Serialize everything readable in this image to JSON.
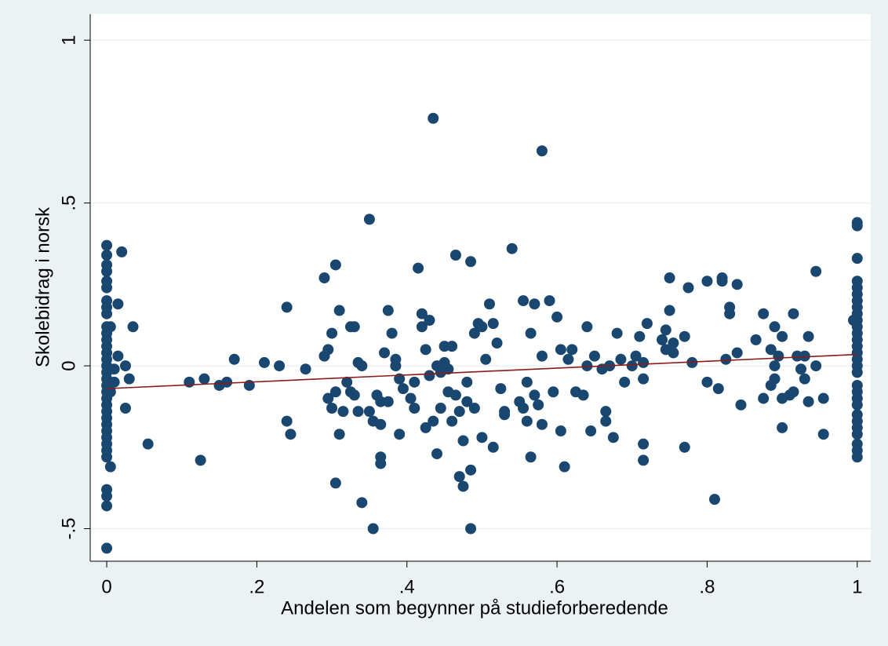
{
  "chart_data": {
    "type": "scatter",
    "x_label": "Andelen som begynner på studieforberedende",
    "y_label": "Skolebidrag i norsk",
    "xlim": [
      -0.022,
      1.018
    ],
    "ylim": [
      -0.6,
      1.08
    ],
    "xticks": [
      0,
      {
        "value": 0.2,
        "label": ".2"
      },
      {
        "value": 0.4,
        "label": ".4"
      },
      {
        "value": 0.6,
        "label": ".6"
      },
      {
        "value": 0.8,
        "label": ".8"
      },
      1
    ],
    "yticks": [
      {
        "value": -0.5,
        "label": "-.5"
      },
      0,
      {
        "value": 0.5,
        "label": ".5"
      },
      1
    ],
    "grid": true,
    "color": "#1a476f",
    "x": [
      0,
      0,
      0,
      0,
      0,
      0,
      0,
      0,
      0,
      0,
      0,
      0,
      0,
      0,
      0,
      0,
      0,
      0,
      0,
      0,
      0,
      0,
      0,
      0,
      0,
      0,
      0,
      0,
      0,
      0,
      0,
      0,
      0,
      0,
      0.005,
      0.005,
      0.01,
      0.015,
      0.015,
      0.02,
      0.025,
      0.03,
      0.025,
      0.035,
      0.005,
      0.055,
      0.01,
      0.11,
      0.125,
      0.13,
      0.15,
      0.16,
      0.17,
      0.19,
      0.21,
      0.23,
      0.24,
      0.24,
      0.245,
      0.265,
      0.29,
      0.29,
      0.295,
      0.295,
      0.3,
      0.3,
      0.305,
      0.305,
      0.305,
      0.31,
      0.31,
      0.315,
      0.32,
      0.325,
      0.325,
      0.33,
      0.33,
      0.335,
      0.335,
      0.34,
      0.34,
      0.35,
      0.35,
      0.355,
      0.355,
      0.36,
      0.365,
      0.365,
      0.365,
      0.365,
      0.37,
      0.375,
      0.375,
      0.38,
      0.385,
      0.385,
      0.39,
      0.39,
      0.395,
      0.405,
      0.41,
      0.41,
      0.415,
      0.42,
      0.42,
      0.425,
      0.425,
      0.43,
      0.43,
      0.435,
      0.435,
      0.44,
      0.44,
      0.445,
      0.445,
      0.45,
      0.45,
      0.455,
      0.455,
      0.46,
      0.46,
      0.465,
      0.465,
      0.47,
      0.47,
      0.475,
      0.475,
      0.48,
      0.48,
      0.485,
      0.485,
      0.485,
      0.49,
      0.49,
      0.495,
      0.5,
      0.5,
      0.505,
      0.51,
      0.515,
      0.515,
      0.52,
      0.525,
      0.53,
      0.53,
      0.54,
      0.55,
      0.555,
      0.555,
      0.56,
      0.56,
      0.565,
      0.565,
      0.57,
      0.57,
      0.575,
      0.58,
      0.58,
      0.58,
      0.59,
      0.595,
      0.6,
      0.605,
      0.605,
      0.61,
      0.615,
      0.62,
      0.625,
      0.635,
      0.64,
      0.64,
      0.645,
      0.65,
      0.66,
      0.665,
      0.665,
      0.67,
      0.675,
      0.68,
      0.685,
      0.69,
      0.7,
      0.705,
      0.71,
      0.715,
      0.715,
      0.715,
      0.72,
      0.715,
      0.74,
      0.745,
      0.745,
      0.75,
      0.75,
      0.755,
      0.755,
      0.77,
      0.77,
      0.775,
      0.78,
      0.8,
      0.8,
      0.81,
      0.815,
      0.82,
      0.82,
      0.825,
      0.83,
      0.83,
      0.84,
      0.84,
      0.845,
      0.865,
      0.875,
      0.875,
      0.885,
      0.885,
      0.89,
      0.89,
      0.89,
      0.895,
      0.9,
      0.9,
      0.9,
      0.91,
      0.915,
      0.915,
      0.92,
      0.925,
      0.93,
      0.93,
      0.935,
      0.935,
      0.945,
      0.945,
      0.955,
      0.955,
      0.995,
      1,
      1,
      1,
      1,
      1,
      1,
      1,
      1,
      1,
      1,
      1,
      1,
      1,
      1,
      1,
      1,
      1,
      1,
      1,
      1,
      1,
      1,
      1,
      1,
      1,
      1,
      1,
      1,
      1
    ],
    "values": [
      0.37,
      0.34,
      0.31,
      0.29,
      0.26,
      0.24,
      0.2,
      0.18,
      0.16,
      0.12,
      0.1,
      0.08,
      0.06,
      0.04,
      0.02,
      0.0,
      -0.02,
      -0.04,
      -0.06,
      -0.08,
      -0.1,
      -0.12,
      -0.14,
      -0.16,
      -0.18,
      -0.2,
      -0.22,
      -0.24,
      -0.26,
      -0.28,
      -0.38,
      -0.4,
      -0.43,
      -0.56,
      0.12,
      -0.08,
      -0.05,
      0.03,
      0.19,
      0.35,
      0.0,
      -0.04,
      -0.13,
      0.12,
      -0.31,
      -0.24,
      -0.01,
      -0.05,
      -0.29,
      -0.04,
      -0.06,
      -0.05,
      0.02,
      -0.06,
      0.01,
      0.0,
      -0.17,
      0.18,
      -0.21,
      -0.01,
      0.27,
      0.03,
      0.05,
      -0.1,
      -0.13,
      0.1,
      -0.08,
      0.31,
      -0.36,
      -0.21,
      0.17,
      -0.14,
      -0.05,
      -0.08,
      0.12,
      0.12,
      -0.09,
      -0.14,
      0.01,
      0.0,
      -0.42,
      0.45,
      -0.14,
      -0.17,
      -0.5,
      -0.09,
      -0.11,
      -0.18,
      -0.28,
      -0.3,
      0.04,
      0.17,
      -0.11,
      0.1,
      0.0,
      0.02,
      -0.21,
      -0.04,
      -0.07,
      -0.1,
      -0.13,
      -0.05,
      0.3,
      0.16,
      0.12,
      -0.19,
      0.05,
      -0.03,
      0.14,
      -0.17,
      0.76,
      0.0,
      -0.27,
      -0.13,
      -0.02,
      0.06,
      0.01,
      -0.08,
      -0.01,
      0.06,
      -0.17,
      0.34,
      -0.09,
      -0.14,
      -0.34,
      -0.37,
      -0.23,
      -0.05,
      -0.11,
      0.32,
      -0.32,
      -0.5,
      -0.13,
      0.1,
      0.13,
      -0.22,
      0.12,
      0.02,
      0.19,
      -0.25,
      0.13,
      0.07,
      -0.07,
      -0.14,
      -0.15,
      0.36,
      -0.11,
      0.2,
      -0.13,
      -0.05,
      -0.17,
      -0.28,
      0.1,
      0.19,
      -0.09,
      -0.12,
      0.66,
      0.03,
      -0.18,
      0.2,
      -0.08,
      0.15,
      0.05,
      -0.2,
      -0.31,
      0.02,
      0.05,
      -0.08,
      -0.09,
      0.12,
      0.0,
      -0.2,
      0.03,
      -0.01,
      -0.14,
      -0.17,
      0.0,
      -0.22,
      0.1,
      0.02,
      -0.05,
      0.0,
      0.03,
      0.09,
      -0.24,
      -0.04,
      -0.29,
      0.13,
      0.01,
      0.08,
      0.05,
      0.11,
      0.27,
      0.17,
      0.04,
      0.07,
      -0.25,
      0.09,
      0.24,
      0.01,
      0.26,
      -0.05,
      -0.41,
      -0.07,
      0.26,
      0.27,
      0.02,
      0.16,
      0.18,
      0.25,
      0.04,
      -0.12,
      0.08,
      0.16,
      -0.1,
      0.05,
      -0.06,
      0.12,
      0.0,
      -0.04,
      0.03,
      0.09,
      -0.19,
      -0.1,
      -0.09,
      0.16,
      -0.08,
      0.03,
      -0.01,
      0.03,
      -0.04,
      0.09,
      -0.11,
      0.29,
      0.0,
      -0.21,
      -0.1,
      0.14,
      0.44,
      0.43,
      0.33,
      0.26,
      0.24,
      0.22,
      0.2,
      0.18,
      0.16,
      0.14,
      0.12,
      0.1,
      0.08,
      0.06,
      0.04,
      0.02,
      0.0,
      -0.02,
      -0.06,
      -0.08,
      -0.1,
      -0.12,
      -0.15,
      -0.17,
      -0.19,
      -0.21,
      -0.24,
      -0.26,
      -0.28
    ],
    "fit": {
      "x": [
        0,
        1
      ],
      "values": [
        -0.07,
        0.035
      ],
      "color": "#8b1a1a"
    }
  }
}
